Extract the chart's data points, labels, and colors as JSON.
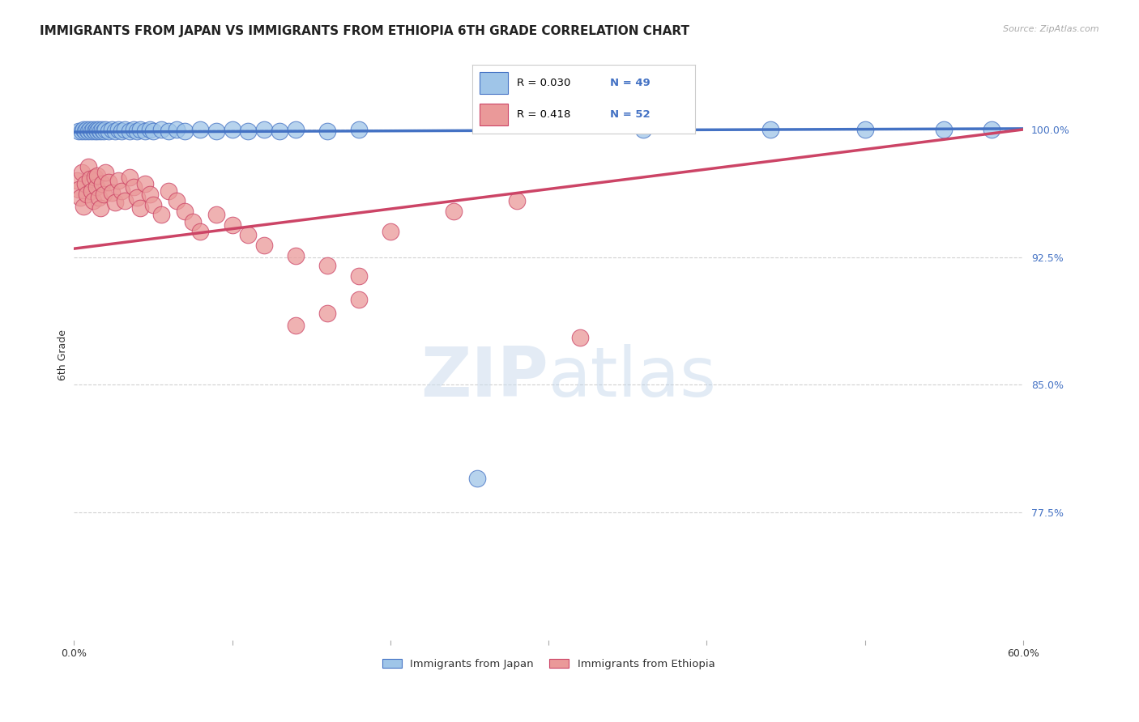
{
  "title": "IMMIGRANTS FROM JAPAN VS IMMIGRANTS FROM ETHIOPIA 6TH GRADE CORRELATION CHART",
  "source": "Source: ZipAtlas.com",
  "ylabel": "6th Grade",
  "ytick_labels": [
    "100.0%",
    "92.5%",
    "85.0%",
    "77.5%"
  ],
  "ytick_values": [
    1.0,
    0.925,
    0.85,
    0.775
  ],
  "xlim": [
    0.0,
    0.6
  ],
  "ylim": [
    0.7,
    1.035
  ],
  "japan_R": 0.03,
  "japan_N": 49,
  "ethiopia_R": 0.418,
  "ethiopia_N": 52,
  "japan_color": "#9fc5e8",
  "ethiopia_color": "#ea9999",
  "japan_line_color": "#4472c4",
  "ethiopia_line_color": "#cc4466",
  "legend_japan_label": "Immigrants from Japan",
  "legend_ethiopia_label": "Immigrants from Ethiopia",
  "watermark_zip": "ZIP",
  "watermark_atlas": "atlas",
  "background_color": "#ffffff",
  "grid_color": "#cccccc",
  "title_fontsize": 11,
  "axis_label_fontsize": 9,
  "tick_fontsize": 9,
  "japan_x": [
    0.003,
    0.005,
    0.006,
    0.007,
    0.008,
    0.009,
    0.01,
    0.011,
    0.012,
    0.013,
    0.014,
    0.015,
    0.016,
    0.017,
    0.018,
    0.019,
    0.02,
    0.022,
    0.024,
    0.026,
    0.028,
    0.03,
    0.032,
    0.035,
    0.038,
    0.04,
    0.042,
    0.045,
    0.048,
    0.05,
    0.055,
    0.06,
    0.065,
    0.07,
    0.08,
    0.09,
    0.1,
    0.11,
    0.12,
    0.13,
    0.14,
    0.16,
    0.18,
    0.36,
    0.44,
    0.5,
    0.55,
    0.58,
    0.255
  ],
  "japan_y": [
    0.999,
    0.999,
    1.0,
    0.999,
    1.0,
    0.999,
    1.0,
    0.999,
    1.0,
    0.999,
    1.0,
    0.999,
    1.0,
    0.999,
    1.0,
    0.999,
    1.0,
    0.999,
    1.0,
    0.999,
    1.0,
    0.999,
    1.0,
    0.999,
    1.0,
    0.999,
    1.0,
    0.999,
    1.0,
    0.999,
    1.0,
    0.999,
    1.0,
    0.999,
    1.0,
    0.999,
    1.0,
    0.999,
    1.0,
    0.999,
    1.0,
    0.999,
    1.0,
    1.0,
    1.0,
    1.0,
    1.0,
    1.0,
    0.795
  ],
  "ethiopia_x": [
    0.002,
    0.003,
    0.004,
    0.005,
    0.006,
    0.007,
    0.008,
    0.009,
    0.01,
    0.011,
    0.012,
    0.013,
    0.014,
    0.015,
    0.016,
    0.017,
    0.018,
    0.019,
    0.02,
    0.022,
    0.024,
    0.026,
    0.028,
    0.03,
    0.032,
    0.035,
    0.038,
    0.04,
    0.042,
    0.045,
    0.048,
    0.05,
    0.055,
    0.06,
    0.065,
    0.07,
    0.075,
    0.08,
    0.09,
    0.1,
    0.11,
    0.12,
    0.14,
    0.16,
    0.18,
    0.2,
    0.24,
    0.28,
    0.18,
    0.16,
    0.14,
    0.32
  ],
  "ethiopia_y": [
    0.97,
    0.965,
    0.96,
    0.975,
    0.955,
    0.968,
    0.962,
    0.978,
    0.971,
    0.964,
    0.958,
    0.972,
    0.966,
    0.973,
    0.96,
    0.954,
    0.968,
    0.962,
    0.975,
    0.969,
    0.963,
    0.957,
    0.97,
    0.964,
    0.958,
    0.972,
    0.966,
    0.96,
    0.954,
    0.968,
    0.962,
    0.956,
    0.95,
    0.964,
    0.958,
    0.952,
    0.946,
    0.94,
    0.95,
    0.944,
    0.938,
    0.932,
    0.926,
    0.92,
    0.914,
    0.94,
    0.952,
    0.958,
    0.9,
    0.892,
    0.885,
    0.878
  ],
  "japan_line_y0": 0.9985,
  "japan_line_y1": 1.0005,
  "ethiopia_line_y0": 0.93,
  "ethiopia_line_y1": 1.0
}
